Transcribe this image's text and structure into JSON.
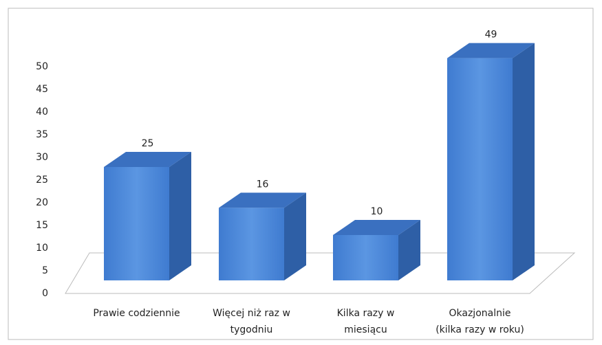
{
  "chart_data": {
    "type": "bar3d",
    "categories": [
      "Prawie codziennie",
      "Więcej niż raz w\ntygodniu",
      "Kilka razy w\nmiesiącu",
      "Okazjonalnie\n(kilka razy w roku)"
    ],
    "values": [
      25,
      16,
      10,
      49
    ],
    "color": "#4a86d8",
    "ylim": [
      0,
      50
    ],
    "yticks": [
      0,
      5,
      10,
      15,
      20,
      25,
      30,
      35,
      40,
      45,
      50
    ]
  }
}
